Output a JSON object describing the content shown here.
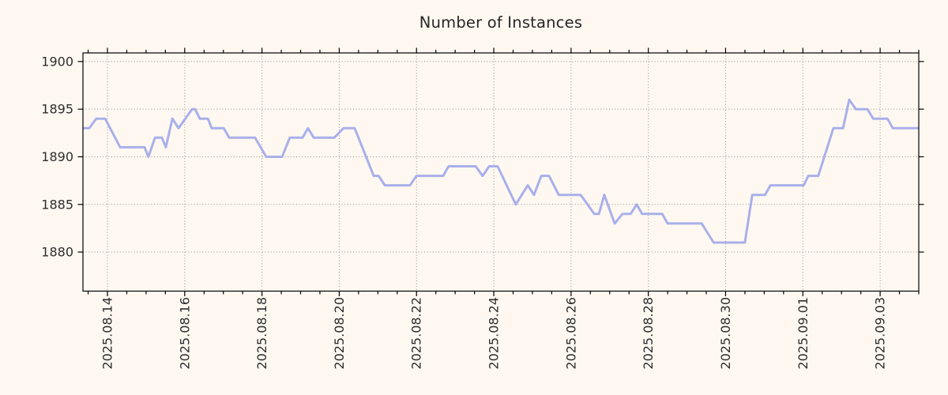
{
  "title": "Number of Instances",
  "colors": {
    "background": "#fff8f1",
    "line": "#a8b0ea",
    "grid": "#8f8f8f",
    "axis": "#000000",
    "text": "#2e2e2e",
    "title_text": "#262626"
  },
  "chart_data": {
    "type": "line",
    "title": "Number of Instances",
    "xlabel": "",
    "ylabel": "",
    "legend": "none",
    "grid": "dotted",
    "x_axis": {
      "unit": "days relative to 2025.08.14",
      "tick_days": [
        0,
        2,
        4,
        6,
        8,
        10,
        12,
        14,
        16,
        18,
        20
      ],
      "tick_labels": [
        "2025.08.14",
        "2025.08.16",
        "2025.08.18",
        "2025.08.20",
        "2025.08.22",
        "2025.08.24",
        "2025.08.26",
        "2025.08.28",
        "2025.08.30",
        "2025.09.01",
        "2025.09.03"
      ],
      "minor_tick_interval_days": 0.5,
      "range_days": [
        -0.634,
        21.0
      ]
    },
    "y_axis": {
      "tick_values": [
        1880,
        1885,
        1890,
        1895,
        1900
      ],
      "tick_labels": [
        "1880",
        "1885",
        "1890",
        "1895",
        "1900"
      ],
      "range": [
        1875.9,
        1900.9
      ]
    },
    "series": [
      {
        "name": "instances",
        "color": "#a8b0ea",
        "points": [
          [
            -0.63,
            1893
          ],
          [
            -0.47,
            1893
          ],
          [
            -0.29,
            1894
          ],
          [
            -0.06,
            1894
          ],
          [
            0.33,
            1891
          ],
          [
            0.96,
            1891
          ],
          [
            1.06,
            1890
          ],
          [
            1.23,
            1892
          ],
          [
            1.41,
            1892
          ],
          [
            1.51,
            1891
          ],
          [
            1.68,
            1894
          ],
          [
            1.84,
            1893
          ],
          [
            2.19,
            1895
          ],
          [
            2.27,
            1895
          ],
          [
            2.39,
            1894
          ],
          [
            2.6,
            1894
          ],
          [
            2.7,
            1893
          ],
          [
            3.01,
            1893
          ],
          [
            3.15,
            1892
          ],
          [
            3.82,
            1892
          ],
          [
            4.11,
            1890
          ],
          [
            4.52,
            1890
          ],
          [
            4.72,
            1892
          ],
          [
            5.05,
            1892
          ],
          [
            5.19,
            1893
          ],
          [
            5.34,
            1892
          ],
          [
            5.87,
            1892
          ],
          [
            6.11,
            1893
          ],
          [
            6.4,
            1893
          ],
          [
            6.89,
            1888
          ],
          [
            7.02,
            1888
          ],
          [
            7.18,
            1887
          ],
          [
            7.83,
            1887
          ],
          [
            8.0,
            1888
          ],
          [
            8.69,
            1888
          ],
          [
            8.83,
            1889
          ],
          [
            9.53,
            1889
          ],
          [
            9.71,
            1888
          ],
          [
            9.88,
            1889
          ],
          [
            10.1,
            1889
          ],
          [
            10.57,
            1885
          ],
          [
            10.88,
            1887
          ],
          [
            11.04,
            1886
          ],
          [
            11.23,
            1888
          ],
          [
            11.43,
            1888
          ],
          [
            11.68,
            1886
          ],
          [
            12.25,
            1886
          ],
          [
            12.6,
            1884
          ],
          [
            12.72,
            1884
          ],
          [
            12.86,
            1886
          ],
          [
            13.13,
            1883
          ],
          [
            13.33,
            1884
          ],
          [
            13.54,
            1884
          ],
          [
            13.7,
            1885
          ],
          [
            13.84,
            1884
          ],
          [
            14.36,
            1884
          ],
          [
            14.5,
            1883
          ],
          [
            15.38,
            1883
          ],
          [
            15.69,
            1881
          ],
          [
            16.5,
            1881
          ],
          [
            16.69,
            1886
          ],
          [
            17.02,
            1886
          ],
          [
            17.16,
            1887
          ],
          [
            18.02,
            1887
          ],
          [
            18.14,
            1888
          ],
          [
            18.4,
            1888
          ],
          [
            18.79,
            1893
          ],
          [
            19.04,
            1893
          ],
          [
            19.2,
            1896
          ],
          [
            19.37,
            1895
          ],
          [
            19.67,
            1895
          ],
          [
            19.82,
            1894
          ],
          [
            20.19,
            1894
          ],
          [
            20.33,
            1893
          ],
          [
            21.0,
            1893
          ]
        ]
      }
    ]
  }
}
